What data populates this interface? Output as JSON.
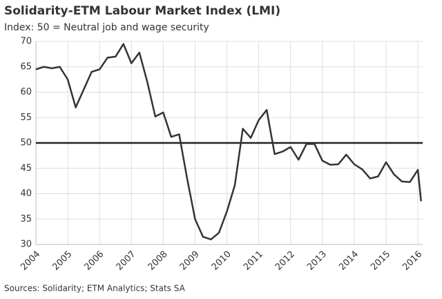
{
  "chart_data": {
    "type": "line",
    "title": "Solidarity-ETM Labour Market Index (LMI)",
    "subtitle": "Index: 50 = Neutral job and wage security",
    "source": "Sources: Solidarity; ETM Analytics; Stats SA",
    "x": [
      2004,
      2004.25,
      2004.5,
      2004.75,
      2005,
      2005.25,
      2005.5,
      2005.75,
      2006,
      2006.25,
      2006.5,
      2006.75,
      2007,
      2007.25,
      2007.5,
      2007.75,
      2008,
      2008.25,
      2008.5,
      2008.75,
      2009,
      2009.25,
      2009.5,
      2009.75,
      2010,
      2010.25,
      2010.5,
      2010.75,
      2011,
      2011.25,
      2011.5,
      2011.75,
      2012,
      2012.25,
      2012.5,
      2012.75,
      2013,
      2013.25,
      2013.5,
      2013.75,
      2014,
      2014.25,
      2014.5,
      2014.75,
      2015,
      2015.25,
      2015.5,
      2015.75,
      2016,
      2016.1
    ],
    "series": [
      {
        "name": "LMI",
        "color": "#333333",
        "values": [
          64.5,
          65.0,
          64.7,
          65.0,
          62.5,
          57.0,
          60.5,
          64.0,
          64.5,
          66.8,
          67.0,
          69.5,
          65.7,
          67.8,
          62.0,
          55.2,
          56.0,
          51.2,
          51.7,
          43.0,
          35.0,
          31.5,
          31.0,
          32.3,
          36.5,
          41.7,
          52.8,
          51.0,
          54.5,
          56.5,
          47.8,
          48.3,
          49.2,
          46.7,
          49.8,
          49.8,
          46.5,
          45.7,
          45.8,
          47.7,
          45.8,
          44.8,
          43.0,
          43.4,
          46.2,
          43.8,
          42.4,
          42.3,
          44.7,
          38.5
        ]
      }
    ],
    "reference_line": 50,
    "xlim": [
      2004,
      2016.15
    ],
    "xticks": [
      2004,
      2005,
      2006,
      2007,
      2008,
      2009,
      2010,
      2011,
      2012,
      2013,
      2014,
      2015,
      2016
    ],
    "ylim": [
      30,
      70
    ],
    "yticks": [
      30,
      35,
      40,
      45,
      50,
      55,
      60,
      65,
      70
    ],
    "grid": true
  }
}
